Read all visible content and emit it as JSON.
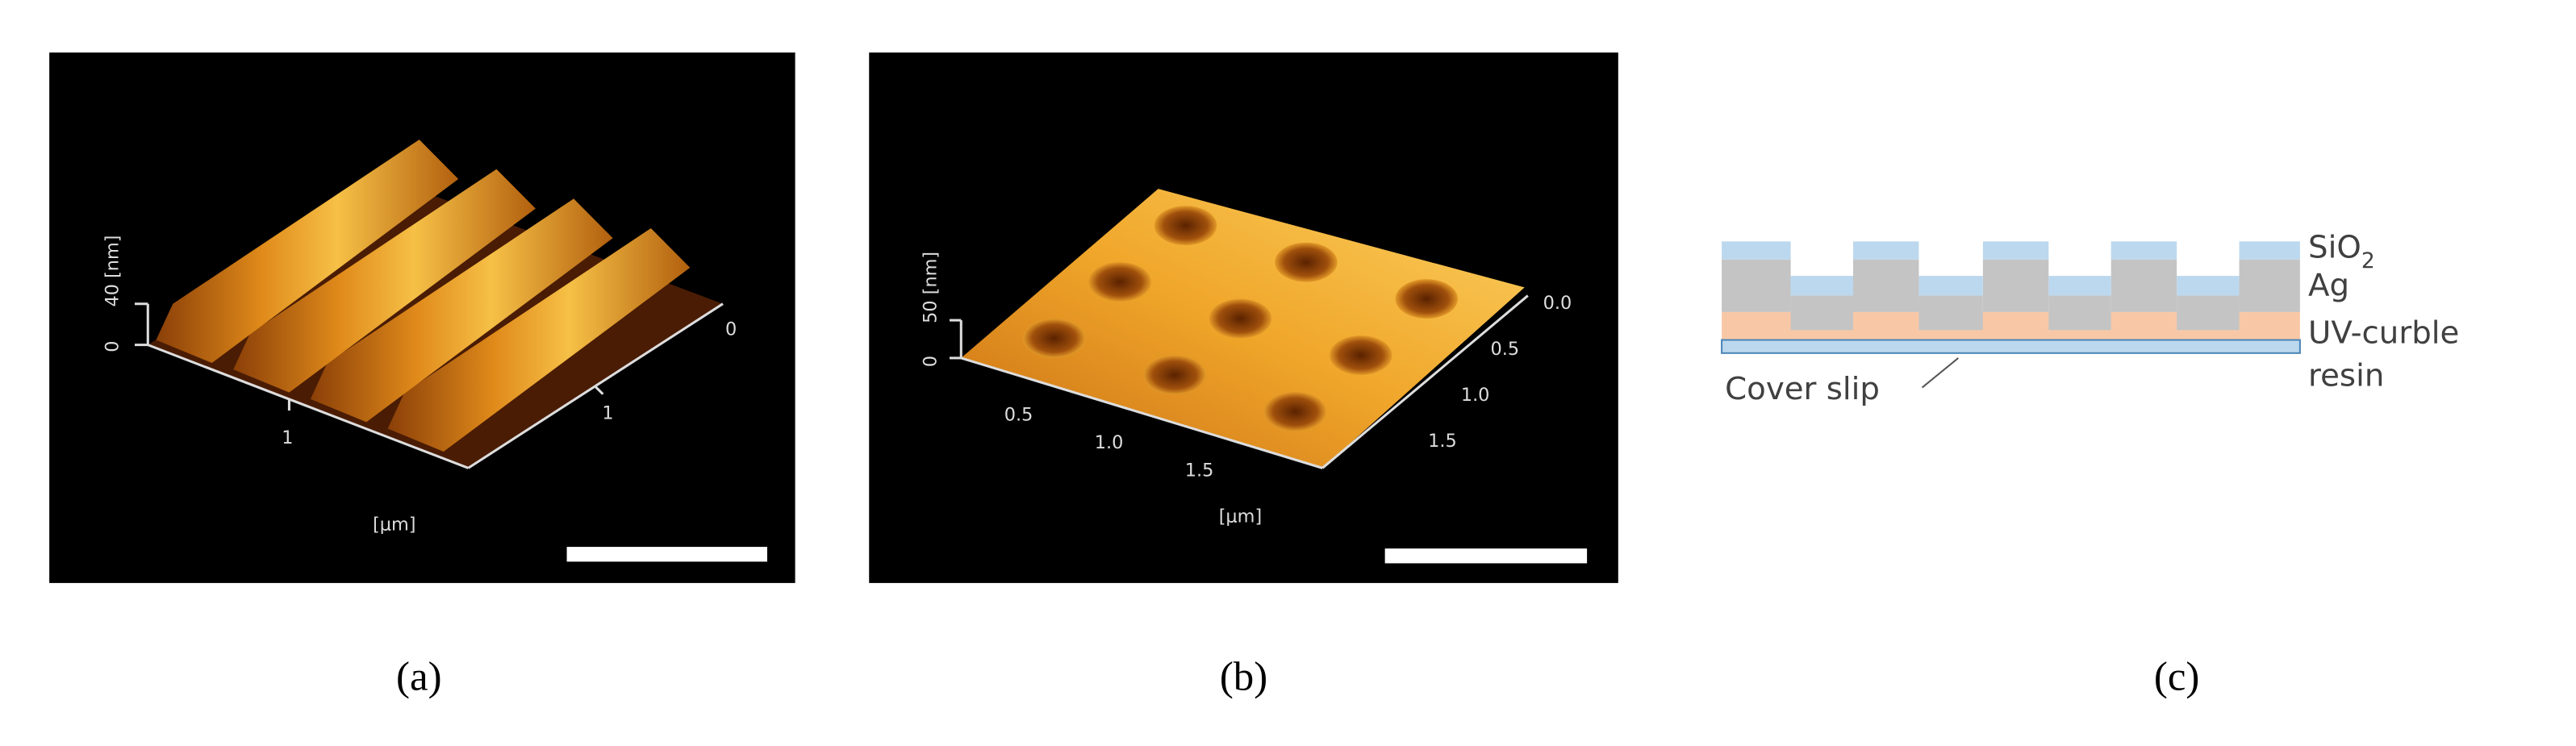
{
  "panels": [
    {
      "caption": "(a)",
      "z_label": "40 [nm]",
      "z_zero": "0",
      "front_tick": "1",
      "side_tick": "1",
      "side_zero": "0",
      "unit": "[μm]"
    },
    {
      "caption": "(b)",
      "z_label": "50 [nm]",
      "z_zero": "0",
      "front_ticks": [
        "0.5",
        "1.0",
        "1.5"
      ],
      "side_ticks": [
        "0.0",
        "0.5",
        "1.0",
        "1.5"
      ],
      "unit": "[μm]"
    },
    {
      "caption": "(c)",
      "labels": {
        "sio": "SiO",
        "sio_sub": "2",
        "ag": "Ag",
        "uv": "UV-curble",
        "resin": "resin",
        "cover": "Cover slip"
      }
    }
  ]
}
